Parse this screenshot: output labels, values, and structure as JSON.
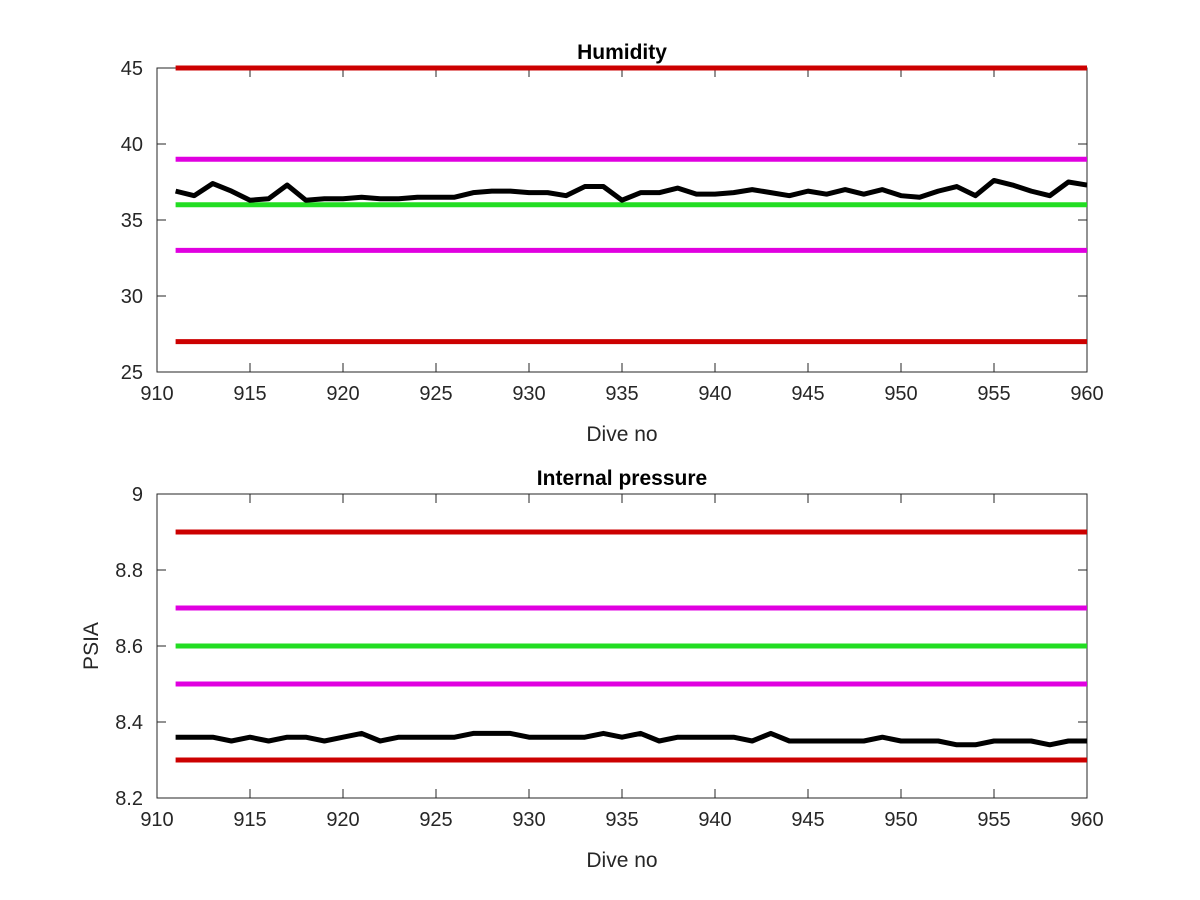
{
  "chart_data": [
    {
      "type": "line",
      "title": "Humidity",
      "xlabel": "Dive no",
      "ylabel": "",
      "xlim": [
        910,
        960
      ],
      "ylim": [
        25,
        45
      ],
      "xticks": [
        910,
        915,
        920,
        925,
        930,
        935,
        940,
        945,
        950,
        955,
        960
      ],
      "yticks": [
        25,
        30,
        35,
        40,
        45
      ],
      "grid": false,
      "legend": "none",
      "reference_lines": [
        {
          "y": 45,
          "color": "#cc0000"
        },
        {
          "y": 39,
          "color": "#e000e0"
        },
        {
          "y": 36,
          "color": "#22dd22"
        },
        {
          "y": 33,
          "color": "#e000e0"
        },
        {
          "y": 27,
          "color": "#cc0000"
        }
      ],
      "series": [
        {
          "color": "#000000",
          "x": [
            911,
            912,
            913,
            914,
            915,
            916,
            917,
            918,
            919,
            920,
            921,
            922,
            923,
            924,
            925,
            926,
            927,
            928,
            929,
            930,
            931,
            932,
            933,
            934,
            935,
            936,
            937,
            938,
            939,
            940,
            941,
            942,
            943,
            944,
            945,
            946,
            947,
            948,
            949,
            950,
            951,
            952,
            953,
            954,
            955,
            956,
            957,
            958,
            959,
            960
          ],
          "y": [
            36.9,
            36.6,
            37.4,
            36.9,
            36.3,
            36.4,
            37.3,
            36.3,
            36.4,
            36.4,
            36.5,
            36.4,
            36.4,
            36.5,
            36.5,
            36.5,
            36.8,
            36.9,
            36.9,
            36.8,
            36.8,
            36.6,
            37.2,
            37.2,
            36.3,
            36.8,
            36.8,
            37.1,
            36.7,
            36.7,
            36.8,
            37.0,
            36.8,
            36.6,
            36.9,
            36.7,
            37.0,
            36.7,
            37.0,
            36.6,
            36.5,
            36.9,
            37.2,
            36.6,
            37.6,
            37.3,
            36.9,
            36.6,
            37.5,
            37.3
          ]
        }
      ]
    },
    {
      "type": "line",
      "title": "Internal pressure",
      "xlabel": "Dive no",
      "ylabel": "PSIA",
      "xlim": [
        910,
        960
      ],
      "ylim": [
        8.2,
        9
      ],
      "xticks": [
        910,
        915,
        920,
        925,
        930,
        935,
        940,
        945,
        950,
        955,
        960
      ],
      "yticks": [
        8.2,
        8.4,
        8.6,
        8.8,
        9
      ],
      "grid": false,
      "legend": "none",
      "reference_lines": [
        {
          "y": 8.9,
          "color": "#cc0000"
        },
        {
          "y": 8.7,
          "color": "#e000e0"
        },
        {
          "y": 8.6,
          "color": "#22dd22"
        },
        {
          "y": 8.5,
          "color": "#e000e0"
        },
        {
          "y": 8.3,
          "color": "#cc0000"
        }
      ],
      "series": [
        {
          "color": "#000000",
          "x": [
            911,
            912,
            913,
            914,
            915,
            916,
            917,
            918,
            919,
            920,
            921,
            922,
            923,
            924,
            925,
            926,
            927,
            928,
            929,
            930,
            931,
            932,
            933,
            934,
            935,
            936,
            937,
            938,
            939,
            940,
            941,
            942,
            943,
            944,
            945,
            946,
            947,
            948,
            949,
            950,
            951,
            952,
            953,
            954,
            955,
            956,
            957,
            958,
            959,
            960
          ],
          "y": [
            8.36,
            8.36,
            8.36,
            8.35,
            8.36,
            8.35,
            8.36,
            8.36,
            8.35,
            8.36,
            8.37,
            8.35,
            8.36,
            8.36,
            8.36,
            8.36,
            8.37,
            8.37,
            8.37,
            8.36,
            8.36,
            8.36,
            8.36,
            8.37,
            8.36,
            8.37,
            8.35,
            8.36,
            8.36,
            8.36,
            8.36,
            8.35,
            8.37,
            8.35,
            8.35,
            8.35,
            8.35,
            8.35,
            8.36,
            8.35,
            8.35,
            8.35,
            8.34,
            8.34,
            8.35,
            8.35,
            8.35,
            8.34,
            8.35,
            8.35
          ]
        }
      ]
    }
  ]
}
